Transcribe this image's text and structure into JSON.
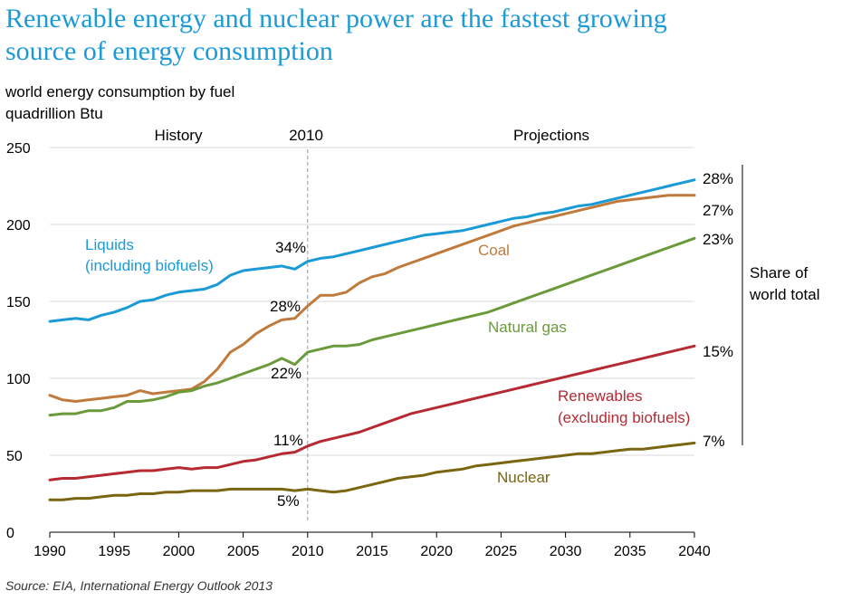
{
  "chart_data": {
    "type": "line",
    "title": "Renewable energy and nuclear power are the fastest growing source of energy consumption",
    "title_lines": [
      "Renewable energy and nuclear power are the fastest growing",
      "source of energy consumption"
    ],
    "subtitle_lines": [
      "world energy consumption by fuel",
      "quadrillion Btu"
    ],
    "xlabel": "",
    "ylabel": "quadrillion Btu",
    "xlim": [
      1990,
      2040
    ],
    "ylim": [
      0,
      250
    ],
    "x_ticks": [
      1990,
      1995,
      2000,
      2005,
      2010,
      2015,
      2020,
      2025,
      2030,
      2035,
      2040
    ],
    "y_ticks": [
      0,
      50,
      100,
      150,
      200,
      250
    ],
    "period_labels": {
      "history": "History",
      "divider": "2010",
      "projections": "Projections"
    },
    "divider_year": 2010,
    "share_label_lines": [
      "Share of",
      "world total"
    ],
    "source": "Source:  EIA, International Energy Outlook 2013",
    "colors": {
      "liquids": "#1a9ad6",
      "coal": "#c07a3c",
      "gas": "#6a9a3a",
      "renewables": "#b52a33",
      "nuclear": "#7a6510"
    },
    "series": [
      {
        "key": "liquids",
        "name": "Liquids (including biofuels)",
        "label_lines": [
          "Liquids",
          "(including biofuels)"
        ],
        "share_2010": "34%",
        "share_2040": "28%",
        "x": [
          1990,
          1991,
          1992,
          1993,
          1994,
          1995,
          1996,
          1997,
          1998,
          1999,
          2000,
          2001,
          2002,
          2003,
          2004,
          2005,
          2006,
          2007,
          2008,
          2009,
          2010,
          2011,
          2012,
          2013,
          2014,
          2015,
          2016,
          2017,
          2018,
          2019,
          2020,
          2021,
          2022,
          2023,
          2024,
          2025,
          2026,
          2027,
          2028,
          2029,
          2030,
          2031,
          2032,
          2033,
          2034,
          2035,
          2036,
          2037,
          2038,
          2039,
          2040
        ],
        "values": [
          137,
          138,
          139,
          138,
          141,
          143,
          146,
          150,
          151,
          154,
          156,
          157,
          158,
          161,
          167,
          170,
          171,
          172,
          173,
          171,
          176,
          178,
          179,
          181,
          183,
          185,
          187,
          189,
          191,
          193,
          194,
          195,
          196,
          198,
          200,
          202,
          204,
          205,
          207,
          208,
          210,
          212,
          213,
          215,
          217,
          219,
          221,
          223,
          225,
          227,
          229
        ]
      },
      {
        "key": "coal",
        "name": "Coal",
        "label_lines": [
          "Coal"
        ],
        "share_2010": "28%",
        "share_2040": "27%",
        "x": [
          1990,
          1991,
          1992,
          1993,
          1994,
          1995,
          1996,
          1997,
          1998,
          1999,
          2000,
          2001,
          2002,
          2003,
          2004,
          2005,
          2006,
          2007,
          2008,
          2009,
          2010,
          2011,
          2012,
          2013,
          2014,
          2015,
          2016,
          2017,
          2018,
          2019,
          2020,
          2021,
          2022,
          2023,
          2024,
          2025,
          2026,
          2027,
          2028,
          2029,
          2030,
          2031,
          2032,
          2033,
          2034,
          2035,
          2036,
          2037,
          2038,
          2039,
          2040
        ],
        "values": [
          89,
          86,
          85,
          86,
          87,
          88,
          89,
          92,
          90,
          91,
          92,
          93,
          98,
          106,
          117,
          122,
          129,
          134,
          138,
          139,
          147,
          154,
          154,
          156,
          162,
          166,
          168,
          172,
          175,
          178,
          181,
          184,
          187,
          190,
          193,
          196,
          199,
          201,
          203,
          205,
          207,
          209,
          211,
          213,
          215,
          216,
          217,
          218,
          219,
          219,
          219
        ]
      },
      {
        "key": "gas",
        "name": "Natural gas",
        "label_lines": [
          "Natural gas"
        ],
        "share_2010": "22%",
        "share_2040": "23%",
        "x": [
          1990,
          1991,
          1992,
          1993,
          1994,
          1995,
          1996,
          1997,
          1998,
          1999,
          2000,
          2001,
          2002,
          2003,
          2004,
          2005,
          2006,
          2007,
          2008,
          2009,
          2010,
          2011,
          2012,
          2013,
          2014,
          2015,
          2016,
          2017,
          2018,
          2019,
          2020,
          2021,
          2022,
          2023,
          2024,
          2025,
          2026,
          2027,
          2028,
          2029,
          2030,
          2031,
          2032,
          2033,
          2034,
          2035,
          2036,
          2037,
          2038,
          2039,
          2040
        ],
        "values": [
          76,
          77,
          77,
          79,
          79,
          81,
          85,
          85,
          86,
          88,
          91,
          92,
          95,
          97,
          100,
          103,
          106,
          109,
          113,
          109,
          117,
          119,
          121,
          121,
          122,
          125,
          127,
          129,
          131,
          133,
          135,
          137,
          139,
          141,
          143,
          146,
          149,
          152,
          155,
          158,
          161,
          164,
          167,
          170,
          173,
          176,
          179,
          182,
          185,
          188,
          191
        ]
      },
      {
        "key": "renewables",
        "name": "Renewables (excluding biofuels)",
        "label_lines": [
          "Renewables",
          "(excluding biofuels)"
        ],
        "share_2010": "11%",
        "share_2040": "15%",
        "x": [
          1990,
          1991,
          1992,
          1993,
          1994,
          1995,
          1996,
          1997,
          1998,
          1999,
          2000,
          2001,
          2002,
          2003,
          2004,
          2005,
          2006,
          2007,
          2008,
          2009,
          2010,
          2011,
          2012,
          2013,
          2014,
          2015,
          2016,
          2017,
          2018,
          2019,
          2020,
          2021,
          2022,
          2023,
          2024,
          2025,
          2026,
          2027,
          2028,
          2029,
          2030,
          2031,
          2032,
          2033,
          2034,
          2035,
          2036,
          2037,
          2038,
          2039,
          2040
        ],
        "values": [
          34,
          35,
          35,
          36,
          37,
          38,
          39,
          40,
          40,
          41,
          42,
          41,
          42,
          42,
          44,
          46,
          47,
          49,
          51,
          52,
          56,
          59,
          61,
          63,
          65,
          68,
          71,
          74,
          77,
          79,
          81,
          83,
          85,
          87,
          89,
          91,
          93,
          95,
          97,
          99,
          101,
          103,
          105,
          107,
          109,
          111,
          113,
          115,
          117,
          119,
          121
        ]
      },
      {
        "key": "nuclear",
        "name": "Nuclear",
        "label_lines": [
          "Nuclear"
        ],
        "share_2010": "5%",
        "share_2040": "7%",
        "x": [
          1990,
          1991,
          1992,
          1993,
          1994,
          1995,
          1996,
          1997,
          1998,
          1999,
          2000,
          2001,
          2002,
          2003,
          2004,
          2005,
          2006,
          2007,
          2008,
          2009,
          2010,
          2011,
          2012,
          2013,
          2014,
          2015,
          2016,
          2017,
          2018,
          2019,
          2020,
          2021,
          2022,
          2023,
          2024,
          2025,
          2026,
          2027,
          2028,
          2029,
          2030,
          2031,
          2032,
          2033,
          2034,
          2035,
          2036,
          2037,
          2038,
          2039,
          2040
        ],
        "values": [
          21,
          21,
          22,
          22,
          23,
          24,
          24,
          25,
          25,
          26,
          26,
          27,
          27,
          27,
          28,
          28,
          28,
          28,
          28,
          27,
          28,
          27,
          26,
          27,
          29,
          31,
          33,
          35,
          36,
          37,
          39,
          40,
          41,
          43,
          44,
          45,
          46,
          47,
          48,
          49,
          50,
          51,
          51,
          52,
          53,
          54,
          54,
          55,
          56,
          57,
          58
        ]
      }
    ]
  }
}
